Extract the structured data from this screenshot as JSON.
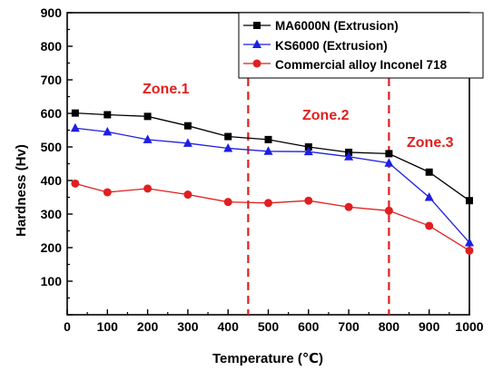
{
  "chart_data": {
    "type": "line",
    "x": [
      20,
      100,
      200,
      300,
      400,
      500,
      600,
      700,
      800,
      900,
      1000
    ],
    "series": [
      {
        "name": "MA6000N (Extrusion)",
        "color": "#000000",
        "marker": "square",
        "values": [
          601,
          596,
          591,
          563,
          531,
          522,
          500,
          484,
          480,
          425,
          340
        ]
      },
      {
        "name": "KS6000 (Extrusion)",
        "color": "#1f1fe0",
        "marker": "triangle",
        "values": [
          556,
          545,
          522,
          511,
          496,
          487,
          486,
          471,
          452,
          350,
          215
        ]
      },
      {
        "name": "Commercial alloy Inconel 718",
        "color": "#e01f1f",
        "marker": "circle",
        "values": [
          391,
          365,
          376,
          358,
          336,
          333,
          340,
          321,
          310,
          265,
          191
        ]
      }
    ],
    "xlabel": "Temperature (℃)",
    "ylabel": "Hardness (Hv)",
    "xlim": [
      0,
      1000
    ],
    "ylim": [
      0,
      900
    ],
    "xticks": [
      0,
      100,
      200,
      300,
      400,
      500,
      600,
      700,
      800,
      900,
      1000
    ],
    "yticks": [
      100,
      200,
      300,
      400,
      500,
      600,
      700,
      800,
      900
    ],
    "legend_position": "top-right",
    "grid": false,
    "zone_dividers": {
      "x": [
        450,
        800
      ],
      "color": "#e01f1f"
    },
    "annotations": [
      "Zone.1",
      "Zone.2",
      "Zone.3"
    ]
  }
}
